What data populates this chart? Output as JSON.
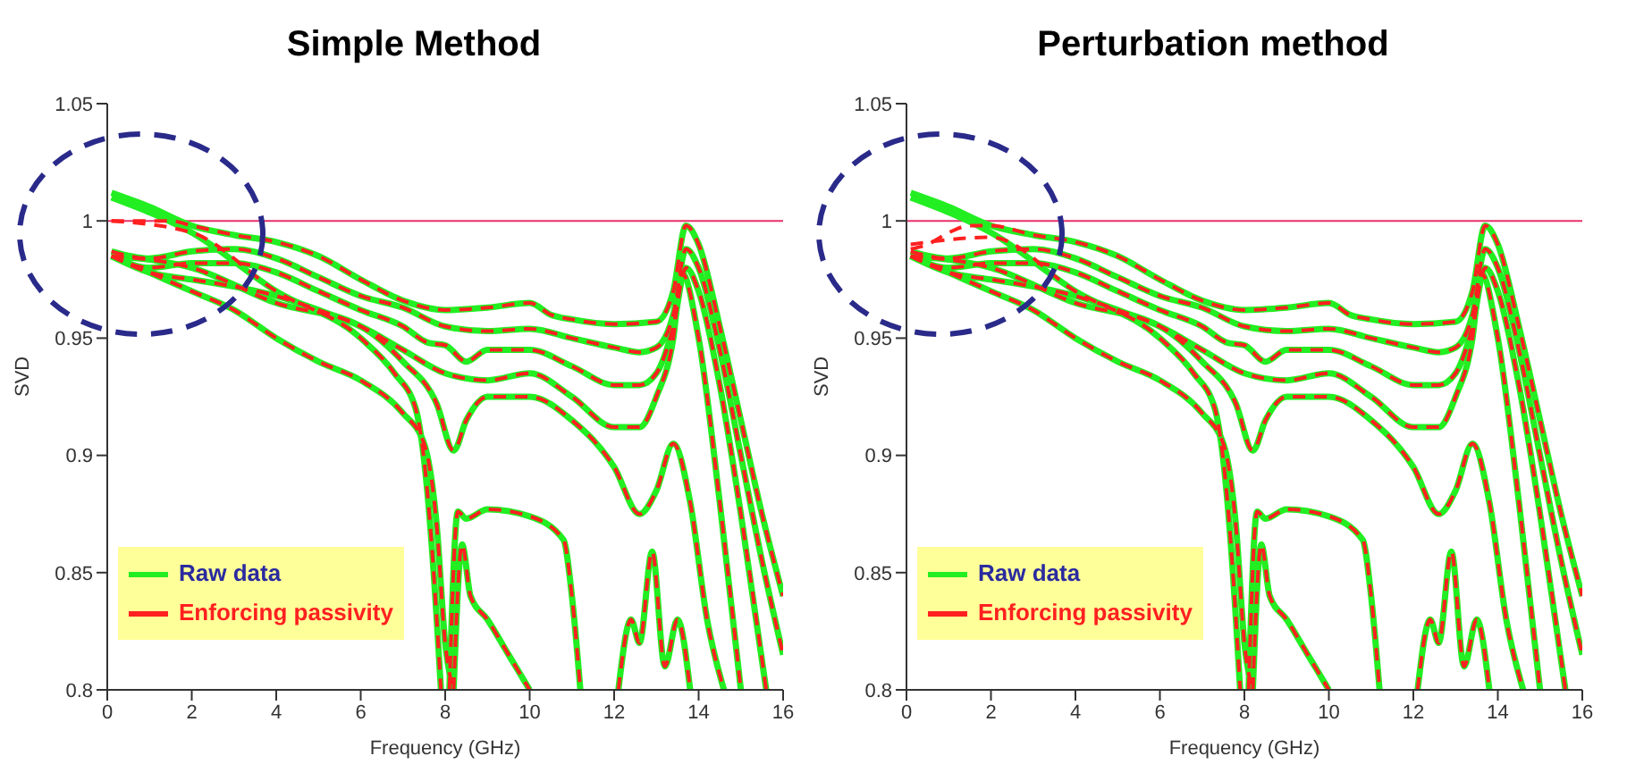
{
  "chart_data": [
    {
      "type": "line",
      "title": "Simple Method",
      "xlabel": "Frequency (GHz)",
      "ylabel": "SVD",
      "xlim": [
        0,
        16
      ],
      "ylim": [
        0.8,
        1.05
      ],
      "xticks": [
        0,
        2,
        4,
        6,
        8,
        10,
        12,
        14,
        16
      ],
      "yticks": [
        0.8,
        0.85,
        0.9,
        0.95,
        1,
        1.05
      ],
      "legend": "bottom left",
      "ref_lines": [
        {
          "axis": "y",
          "value": 1,
          "color": "#e8306a"
        }
      ],
      "series": [
        {
          "name": "Raw data",
          "color": "#22ee22",
          "line_style": "solid",
          "x": [
            0.1,
            1,
            2,
            3,
            4,
            5,
            6,
            7,
            8,
            9,
            10,
            10.5,
            11,
            12,
            13,
            13.4,
            13.7,
            14,
            14.5,
            15,
            15.5,
            16
          ],
          "values": [
            1.012,
            1.006,
            0.998,
            0.994,
            0.991,
            0.985,
            0.975,
            0.966,
            0.962,
            0.963,
            0.965,
            0.96,
            0.958,
            0.956,
            0.957,
            0.97,
            0.998,
            0.99,
            0.955,
            0.915,
            0.875,
            0.84
          ]
        },
        {
          "color": "#22ee22",
          "line_style": "solid",
          "x": [
            0.1,
            1,
            2,
            3,
            4,
            5,
            6,
            7,
            8,
            9,
            10,
            11,
            12,
            12.6,
            13,
            13.4,
            13.7,
            14,
            14.5,
            15,
            15.5,
            16
          ],
          "values": [
            0.987,
            0.984,
            0.987,
            0.988,
            0.984,
            0.976,
            0.968,
            0.963,
            0.955,
            0.953,
            0.954,
            0.95,
            0.946,
            0.944,
            0.946,
            0.96,
            0.988,
            0.98,
            0.945,
            0.9,
            0.855,
            0.815
          ]
        },
        {
          "color": "#22ee22",
          "line_style": "solid",
          "x": [
            0.1,
            1,
            2,
            3,
            4,
            5,
            6,
            7,
            7.6,
            8,
            8.5,
            9,
            10,
            11,
            12,
            12.6,
            13,
            13.4,
            13.7,
            14,
            14.5,
            15,
            15.6
          ],
          "values": [
            0.985,
            0.98,
            0.982,
            0.982,
            0.978,
            0.97,
            0.962,
            0.955,
            0.948,
            0.947,
            0.94,
            0.945,
            0.945,
            0.938,
            0.93,
            0.93,
            0.935,
            0.955,
            0.98,
            0.97,
            0.93,
            0.875,
            0.8
          ]
        },
        {
          "color": "#22ee22",
          "line_style": "solid",
          "x": [
            0.1,
            1,
            2,
            3,
            4,
            5,
            6,
            7,
            8,
            9,
            10,
            11,
            12,
            12.6,
            13,
            13.4,
            13.6,
            14,
            14.5,
            15
          ],
          "values": [
            0.985,
            0.978,
            0.975,
            0.972,
            0.968,
            0.962,
            0.955,
            0.945,
            0.935,
            0.932,
            0.935,
            0.925,
            0.912,
            0.912,
            0.925,
            0.95,
            0.978,
            0.95,
            0.88,
            0.8
          ]
        },
        {
          "color": "#22ee22",
          "line_style": "solid",
          "x": [
            0.1,
            2,
            4,
            6,
            7,
            7.8,
            8.2,
            8.5,
            9,
            10,
            11,
            12,
            12.6,
            13,
            13.4,
            13.8,
            14.2,
            14.6
          ],
          "values": [
            0.985,
            0.98,
            0.965,
            0.955,
            0.94,
            0.922,
            0.902,
            0.915,
            0.925,
            0.925,
            0.915,
            0.895,
            0.875,
            0.885,
            0.905,
            0.88,
            0.83,
            0.8
          ]
        },
        {
          "color": "#22ee22",
          "line_style": "solid",
          "x": [
            0.1,
            1,
            2,
            3,
            4,
            5,
            6,
            7,
            7.5,
            7.8,
            8,
            8.2
          ],
          "values": [
            0.985,
            0.978,
            0.97,
            0.962,
            0.95,
            0.94,
            0.932,
            0.918,
            0.905,
            0.87,
            0.82,
            0.8
          ]
        },
        {
          "color": "#22ee22",
          "line_style": "solid",
          "x": [
            0.1,
            2,
            4,
            6,
            6.8,
            7.3,
            7.6,
            7.8,
            7.9
          ],
          "values": [
            1.01,
            0.995,
            0.97,
            0.95,
            0.935,
            0.92,
            0.88,
            0.83,
            0.8
          ]
        },
        {
          "color": "#22ee22",
          "line_style": "solid",
          "x": [
            8.1,
            8.3,
            8.5,
            9,
            10,
            10.8,
            11,
            11.2
          ],
          "values": [
            0.8,
            0.876,
            0.873,
            0.877,
            0.874,
            0.864,
            0.84,
            0.8
          ]
        },
        {
          "color": "#22ee22",
          "line_style": "solid",
          "x": [
            8.2,
            8.4,
            8.6,
            9,
            9.5,
            10
          ],
          "values": [
            0.8,
            0.862,
            0.84,
            0.83,
            0.815,
            0.8
          ]
        },
        {
          "color": "#22ee22",
          "line_style": "solid",
          "x": [
            12.1,
            12.4,
            12.6,
            12.9,
            13.2,
            13.5,
            13.8
          ],
          "values": [
            0.8,
            0.83,
            0.82,
            0.859,
            0.81,
            0.83,
            0.8
          ]
        },
        {
          "name": "Enforcing passivity",
          "color": "#ff2020",
          "line_style": "dashed",
          "x": [
            0.1,
            1,
            1.5,
            2,
            3,
            4,
            5,
            6,
            7,
            8,
            9,
            10,
            10.5,
            11,
            12,
            13,
            13.4,
            13.7,
            14,
            14.5,
            15,
            15.5,
            16
          ],
          "values": [
            1,
            1,
            1,
            0.998,
            0.994,
            0.991,
            0.985,
            0.975,
            0.966,
            0.962,
            0.963,
            0.965,
            0.96,
            0.958,
            0.956,
            0.957,
            0.97,
            0.998,
            0.99,
            0.955,
            0.915,
            0.875,
            0.84
          ]
        },
        {
          "color": "#ff2020",
          "line_style": "dashed",
          "x": [
            0.1,
            1,
            2,
            3,
            4,
            5,
            6,
            7,
            8,
            9,
            10,
            11,
            12,
            12.6,
            13,
            13.4,
            13.7,
            14,
            14.5,
            15,
            15.5,
            16
          ],
          "values": [
            0.987,
            0.984,
            0.987,
            0.988,
            0.984,
            0.976,
            0.968,
            0.963,
            0.955,
            0.953,
            0.954,
            0.95,
            0.946,
            0.944,
            0.946,
            0.96,
            0.988,
            0.98,
            0.945,
            0.9,
            0.855,
            0.815
          ]
        },
        {
          "color": "#ff2020",
          "line_style": "dashed",
          "x": [
            0.1,
            1,
            2,
            3,
            4,
            5,
            6,
            7,
            7.6,
            8,
            8.5,
            9,
            10,
            11,
            12,
            12.6,
            13,
            13.4,
            13.7,
            14,
            14.5,
            15,
            15.6
          ],
          "values": [
            0.985,
            0.98,
            0.982,
            0.982,
            0.978,
            0.97,
            0.962,
            0.955,
            0.948,
            0.947,
            0.94,
            0.945,
            0.945,
            0.938,
            0.93,
            0.93,
            0.935,
            0.955,
            0.98,
            0.97,
            0.93,
            0.875,
            0.8
          ]
        },
        {
          "color": "#ff2020",
          "line_style": "dashed",
          "x": [
            0.1,
            1,
            2,
            3,
            4,
            5,
            6,
            7,
            8,
            9,
            10,
            11,
            12,
            12.6,
            13,
            13.4,
            13.6,
            14,
            14.5,
            15
          ],
          "values": [
            0.985,
            0.978,
            0.975,
            0.972,
            0.968,
            0.962,
            0.955,
            0.945,
            0.935,
            0.932,
            0.935,
            0.925,
            0.912,
            0.912,
            0.925,
            0.95,
            0.978,
            0.95,
            0.88,
            0.8
          ]
        },
        {
          "color": "#ff2020",
          "line_style": "dashed",
          "x": [
            0.1,
            2,
            4,
            6,
            7,
            7.8,
            8.2,
            8.5,
            9,
            10,
            11,
            12,
            12.6,
            13,
            13.4,
            13.8,
            14.2,
            14.6
          ],
          "values": [
            0.985,
            0.98,
            0.965,
            0.955,
            0.94,
            0.922,
            0.902,
            0.915,
            0.925,
            0.925,
            0.915,
            0.895,
            0.875,
            0.885,
            0.905,
            0.88,
            0.83,
            0.8
          ]
        },
        {
          "color": "#ff2020",
          "line_style": "dashed",
          "x": [
            0.1,
            1,
            2,
            3,
            4,
            5,
            6,
            7,
            7.5,
            7.8,
            8,
            8.2
          ],
          "values": [
            0.985,
            0.978,
            0.97,
            0.962,
            0.95,
            0.94,
            0.932,
            0.918,
            0.905,
            0.87,
            0.82,
            0.8
          ]
        },
        {
          "color": "#ff2020",
          "line_style": "dashed",
          "x": [
            0.1,
            2,
            4,
            6,
            6.8,
            7.3,
            7.6,
            7.8,
            7.9
          ],
          "values": [
            1,
            0.995,
            0.97,
            0.95,
            0.935,
            0.92,
            0.88,
            0.83,
            0.8
          ]
        },
        {
          "color": "#ff2020",
          "line_style": "dashed",
          "x": [
            8.1,
            8.3,
            8.5,
            9,
            10,
            10.8,
            11,
            11.2
          ],
          "values": [
            0.8,
            0.876,
            0.873,
            0.877,
            0.874,
            0.864,
            0.84,
            0.8
          ]
        },
        {
          "color": "#ff2020",
          "line_style": "dashed",
          "x": [
            8.2,
            8.4,
            8.6,
            9,
            9.5,
            10
          ],
          "values": [
            0.8,
            0.862,
            0.84,
            0.83,
            0.815,
            0.8
          ]
        },
        {
          "color": "#ff2020",
          "line_style": "dashed",
          "x": [
            12.1,
            12.4,
            12.6,
            12.9,
            13.2,
            13.5,
            13.8
          ],
          "values": [
            0.8,
            0.83,
            0.82,
            0.859,
            0.81,
            0.83,
            0.8
          ]
        }
      ]
    },
    {
      "type": "line",
      "title": "Perturbation method",
      "xlabel": "Frequency (GHz)",
      "ylabel": "SVD",
      "xlim": [
        0,
        16
      ],
      "ylim": [
        0.8,
        1.05
      ],
      "xticks": [
        0,
        2,
        4,
        6,
        8,
        10,
        12,
        14,
        16
      ],
      "yticks": [
        0.8,
        0.85,
        0.9,
        0.95,
        1,
        1.05
      ],
      "legend": "bottom left",
      "ref_lines": [
        {
          "axis": "y",
          "value": 1,
          "color": "#e8306a"
        }
      ],
      "series": [
        {
          "name": "Raw data",
          "color": "#22ee22",
          "line_style": "solid",
          "x": [
            0.1,
            1,
            2,
            3,
            4,
            5,
            6,
            7,
            8,
            9,
            10,
            10.5,
            11,
            12,
            13,
            13.4,
            13.7,
            14,
            14.5,
            15,
            15.5,
            16
          ],
          "values": [
            1.012,
            1.006,
            0.998,
            0.994,
            0.991,
            0.985,
            0.975,
            0.966,
            0.962,
            0.963,
            0.965,
            0.96,
            0.958,
            0.956,
            0.957,
            0.97,
            0.998,
            0.99,
            0.955,
            0.915,
            0.875,
            0.84
          ]
        },
        {
          "color": "#22ee22",
          "line_style": "solid",
          "x": [
            0.1,
            1,
            2,
            3,
            4,
            5,
            6,
            7,
            8,
            9,
            10,
            11,
            12,
            12.6,
            13,
            13.4,
            13.7,
            14,
            14.5,
            15,
            15.5,
            16
          ],
          "values": [
            0.987,
            0.984,
            0.987,
            0.988,
            0.984,
            0.976,
            0.968,
            0.963,
            0.955,
            0.953,
            0.954,
            0.95,
            0.946,
            0.944,
            0.946,
            0.96,
            0.988,
            0.98,
            0.945,
            0.9,
            0.855,
            0.815
          ]
        },
        {
          "color": "#22ee22",
          "line_style": "solid",
          "x": [
            0.1,
            1,
            2,
            3,
            4,
            5,
            6,
            7,
            7.6,
            8,
            8.5,
            9,
            10,
            11,
            12,
            12.6,
            13,
            13.4,
            13.7,
            14,
            14.5,
            15,
            15.6
          ],
          "values": [
            0.985,
            0.98,
            0.982,
            0.982,
            0.978,
            0.97,
            0.962,
            0.955,
            0.948,
            0.947,
            0.94,
            0.945,
            0.945,
            0.938,
            0.93,
            0.93,
            0.935,
            0.955,
            0.98,
            0.97,
            0.93,
            0.875,
            0.8
          ]
        },
        {
          "color": "#22ee22",
          "line_style": "solid",
          "x": [
            0.1,
            1,
            2,
            3,
            4,
            5,
            6,
            7,
            8,
            9,
            10,
            11,
            12,
            12.6,
            13,
            13.4,
            13.6,
            14,
            14.5,
            15
          ],
          "values": [
            0.985,
            0.978,
            0.975,
            0.972,
            0.968,
            0.962,
            0.955,
            0.945,
            0.935,
            0.932,
            0.935,
            0.925,
            0.912,
            0.912,
            0.925,
            0.95,
            0.978,
            0.95,
            0.88,
            0.8
          ]
        },
        {
          "color": "#22ee22",
          "line_style": "solid",
          "x": [
            0.1,
            2,
            4,
            6,
            7,
            7.8,
            8.2,
            8.5,
            9,
            10,
            11,
            12,
            12.6,
            13,
            13.4,
            13.8,
            14.2,
            14.6
          ],
          "values": [
            0.985,
            0.98,
            0.965,
            0.955,
            0.94,
            0.922,
            0.902,
            0.915,
            0.925,
            0.925,
            0.915,
            0.895,
            0.875,
            0.885,
            0.905,
            0.88,
            0.83,
            0.8
          ]
        },
        {
          "color": "#22ee22",
          "line_style": "solid",
          "x": [
            0.1,
            1,
            2,
            3,
            4,
            5,
            6,
            7,
            7.5,
            7.8,
            8,
            8.2
          ],
          "values": [
            0.985,
            0.978,
            0.97,
            0.962,
            0.95,
            0.94,
            0.932,
            0.918,
            0.905,
            0.87,
            0.82,
            0.8
          ]
        },
        {
          "color": "#22ee22",
          "line_style": "solid",
          "x": [
            0.1,
            2,
            4,
            6,
            6.8,
            7.3,
            7.6,
            7.8,
            7.9
          ],
          "values": [
            1.01,
            0.995,
            0.97,
            0.95,
            0.935,
            0.92,
            0.88,
            0.83,
            0.8
          ]
        },
        {
          "color": "#22ee22",
          "line_style": "solid",
          "x": [
            8.1,
            8.3,
            8.5,
            9,
            10,
            10.8,
            11,
            11.2
          ],
          "values": [
            0.8,
            0.876,
            0.873,
            0.877,
            0.874,
            0.864,
            0.84,
            0.8
          ]
        },
        {
          "color": "#22ee22",
          "line_style": "solid",
          "x": [
            8.2,
            8.4,
            8.6,
            9,
            9.5,
            10
          ],
          "values": [
            0.8,
            0.862,
            0.84,
            0.83,
            0.815,
            0.8
          ]
        },
        {
          "color": "#22ee22",
          "line_style": "solid",
          "x": [
            12.1,
            12.4,
            12.6,
            12.9,
            13.2,
            13.5,
            13.8
          ],
          "values": [
            0.8,
            0.83,
            0.82,
            0.859,
            0.81,
            0.83,
            0.8
          ]
        },
        {
          "name": "Enforcing passivity",
          "color": "#ff2020",
          "line_style": "dashed",
          "x": [
            0.1,
            0.5,
            1,
            1.5,
            2,
            3,
            4,
            5,
            6,
            7,
            8,
            9,
            10,
            10.5,
            11,
            12,
            13,
            13.4,
            13.7,
            14,
            14.5,
            15,
            15.5,
            16
          ],
          "values": [
            0.988,
            0.99,
            0.995,
            0.998,
            0.998,
            0.994,
            0.991,
            0.985,
            0.975,
            0.966,
            0.962,
            0.963,
            0.965,
            0.96,
            0.958,
            0.956,
            0.957,
            0.97,
            0.998,
            0.99,
            0.955,
            0.915,
            0.875,
            0.84
          ]
        },
        {
          "color": "#ff2020",
          "line_style": "dashed",
          "x": [
            0.1,
            1,
            2,
            3,
            4,
            5,
            6,
            7,
            8,
            9,
            10,
            11,
            12,
            12.6,
            13,
            13.4,
            13.7,
            14,
            14.5,
            15,
            15.5,
            16
          ],
          "values": [
            0.987,
            0.984,
            0.987,
            0.988,
            0.984,
            0.976,
            0.968,
            0.963,
            0.955,
            0.953,
            0.954,
            0.95,
            0.946,
            0.944,
            0.946,
            0.96,
            0.988,
            0.98,
            0.945,
            0.9,
            0.855,
            0.815
          ]
        },
        {
          "color": "#ff2020",
          "line_style": "dashed",
          "x": [
            0.1,
            1,
            2,
            3,
            4,
            5,
            6,
            7,
            7.6,
            8,
            8.5,
            9,
            10,
            11,
            12,
            12.6,
            13,
            13.4,
            13.7,
            14,
            14.5,
            15,
            15.6
          ],
          "values": [
            0.985,
            0.98,
            0.982,
            0.982,
            0.978,
            0.97,
            0.962,
            0.955,
            0.948,
            0.947,
            0.94,
            0.945,
            0.945,
            0.938,
            0.93,
            0.93,
            0.935,
            0.955,
            0.98,
            0.97,
            0.93,
            0.875,
            0.8
          ]
        },
        {
          "color": "#ff2020",
          "line_style": "dashed",
          "x": [
            0.1,
            1,
            2,
            3,
            4,
            5,
            6,
            7,
            8,
            9,
            10,
            11,
            12,
            12.6,
            13,
            13.4,
            13.6,
            14,
            14.5,
            15
          ],
          "values": [
            0.985,
            0.978,
            0.975,
            0.972,
            0.968,
            0.962,
            0.955,
            0.945,
            0.935,
            0.932,
            0.935,
            0.925,
            0.912,
            0.912,
            0.925,
            0.95,
            0.978,
            0.95,
            0.88,
            0.8
          ]
        },
        {
          "color": "#ff2020",
          "line_style": "dashed",
          "x": [
            0.1,
            2,
            4,
            6,
            7,
            7.8,
            8.2,
            8.5,
            9,
            10,
            11,
            12,
            12.6,
            13,
            13.4,
            13.8,
            14.2,
            14.6
          ],
          "values": [
            0.985,
            0.98,
            0.965,
            0.955,
            0.94,
            0.922,
            0.902,
            0.915,
            0.925,
            0.925,
            0.915,
            0.895,
            0.875,
            0.885,
            0.905,
            0.88,
            0.83,
            0.8
          ]
        },
        {
          "color": "#ff2020",
          "line_style": "dashed",
          "x": [
            0.1,
            1,
            2,
            3,
            4,
            5,
            6,
            7,
            7.5,
            7.8,
            8,
            8.2
          ],
          "values": [
            0.985,
            0.978,
            0.97,
            0.962,
            0.95,
            0.94,
            0.932,
            0.918,
            0.905,
            0.87,
            0.82,
            0.8
          ]
        },
        {
          "color": "#ff2020",
          "line_style": "dashed",
          "x": [
            0.1,
            2,
            4,
            6,
            6.8,
            7.3,
            7.6,
            7.8,
            7.9
          ],
          "values": [
            0.99,
            0.993,
            0.97,
            0.95,
            0.935,
            0.92,
            0.88,
            0.83,
            0.8
          ]
        },
        {
          "color": "#ff2020",
          "line_style": "dashed",
          "x": [
            8.1,
            8.3,
            8.5,
            9,
            10,
            10.8,
            11,
            11.2
          ],
          "values": [
            0.8,
            0.876,
            0.873,
            0.877,
            0.874,
            0.864,
            0.84,
            0.8
          ]
        },
        {
          "color": "#ff2020",
          "line_style": "dashed",
          "x": [
            8.2,
            8.4,
            8.6,
            9,
            9.5,
            10
          ],
          "values": [
            0.8,
            0.862,
            0.84,
            0.83,
            0.815,
            0.8
          ]
        },
        {
          "color": "#ff2020",
          "line_style": "dashed",
          "x": [
            12.1,
            12.4,
            12.6,
            12.9,
            13.2,
            13.5,
            13.8
          ],
          "values": [
            0.8,
            0.83,
            0.82,
            0.859,
            0.81,
            0.83,
            0.8
          ]
        }
      ]
    }
  ]
}
